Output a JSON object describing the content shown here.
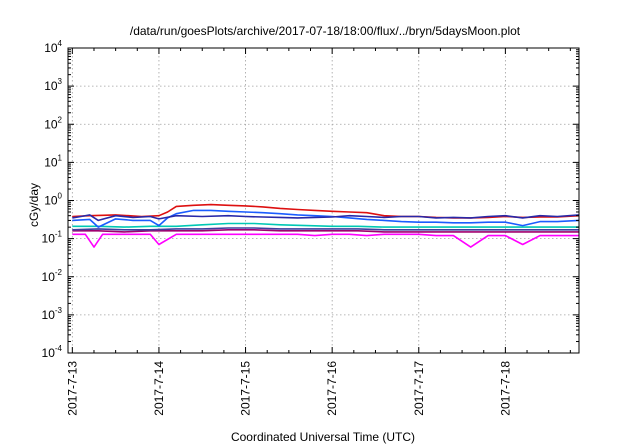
{
  "chart_data": {
    "type": "line",
    "title": "/data/run/goesPlots/archive/2017-07-18/18:00/flux/../bryn/5daysMoon.plot",
    "xlabel": "Coordinated Universal Time (UTC)",
    "ylabel": "cGy/day",
    "yscale": "log",
    "ylim": [
      0.0001,
      10000
    ],
    "xlim": [
      -0.05,
      5.85
    ],
    "grid": true,
    "y_ticks": [
      {
        "base": "10",
        "exp": "-4",
        "value": 0.0001
      },
      {
        "base": "10",
        "exp": "-3",
        "value": 0.001
      },
      {
        "base": "10",
        "exp": "-2",
        "value": 0.01
      },
      {
        "base": "10",
        "exp": "-1",
        "value": 0.1
      },
      {
        "base": "10",
        "exp": "0",
        "value": 1
      },
      {
        "base": "10",
        "exp": "1",
        "value": 10
      },
      {
        "base": "10",
        "exp": "2",
        "value": 100
      },
      {
        "base": "10",
        "exp": "3",
        "value": 1000
      },
      {
        "base": "10",
        "exp": "4",
        "value": 10000
      }
    ],
    "x_ticks": [
      {
        "label": "2017-7-13",
        "value": 0
      },
      {
        "label": "2017-7-14",
        "value": 1
      },
      {
        "label": "2017-7-15",
        "value": 2
      },
      {
        "label": "2017-7-16",
        "value": 3
      },
      {
        "label": "2017-7-17",
        "value": 4
      },
      {
        "label": "2017-7-18",
        "value": 5
      }
    ],
    "series": [
      {
        "color": "#ff00ff",
        "x": [
          0,
          0.15,
          0.25,
          0.35,
          0.5,
          0.7,
          0.9,
          1.0,
          1.2,
          1.4,
          1.6,
          1.8,
          2.0,
          2.2,
          2.4,
          2.6,
          2.8,
          3.0,
          3.2,
          3.4,
          3.6,
          3.8,
          4.0,
          4.2,
          4.4,
          4.6,
          4.8,
          5.0,
          5.2,
          5.4,
          5.6,
          5.85
        ],
        "y": [
          0.13,
          0.13,
          0.06,
          0.13,
          0.13,
          0.13,
          0.13,
          0.07,
          0.13,
          0.13,
          0.13,
          0.13,
          0.13,
          0.13,
          0.13,
          0.13,
          0.12,
          0.13,
          0.13,
          0.12,
          0.13,
          0.13,
          0.13,
          0.12,
          0.12,
          0.06,
          0.12,
          0.12,
          0.07,
          0.12,
          0.12,
          0.12
        ]
      },
      {
        "color": "#a0006f",
        "x": [
          0,
          0.3,
          0.6,
          0.9,
          1.2,
          1.5,
          1.8,
          2.1,
          2.4,
          2.7,
          3.0,
          3.3,
          3.6,
          3.9,
          4.2,
          4.5,
          4.8,
          5.1,
          5.4,
          5.85
        ],
        "y": [
          0.16,
          0.16,
          0.15,
          0.16,
          0.16,
          0.16,
          0.17,
          0.17,
          0.16,
          0.16,
          0.16,
          0.16,
          0.15,
          0.15,
          0.15,
          0.15,
          0.15,
          0.15,
          0.15,
          0.15
        ]
      },
      {
        "color": "#3f3f9f",
        "x": [
          0,
          0.3,
          0.6,
          0.9,
          1.2,
          1.5,
          1.8,
          2.1,
          2.4,
          2.7,
          3.0,
          3.3,
          3.6,
          3.9,
          4.2,
          4.5,
          4.8,
          5.1,
          5.4,
          5.85
        ],
        "y": [
          0.17,
          0.18,
          0.17,
          0.17,
          0.18,
          0.18,
          0.19,
          0.19,
          0.18,
          0.18,
          0.18,
          0.18,
          0.17,
          0.17,
          0.17,
          0.17,
          0.17,
          0.17,
          0.17,
          0.17
        ]
      },
      {
        "color": "#00c8b4",
        "x": [
          0,
          0.3,
          0.6,
          0.9,
          1.2,
          1.5,
          1.8,
          2.1,
          2.4,
          2.7,
          3.0,
          3.3,
          3.6,
          3.9,
          4.2,
          4.5,
          4.8,
          5.1,
          5.4,
          5.85
        ],
        "y": [
          0.21,
          0.21,
          0.2,
          0.21,
          0.21,
          0.23,
          0.25,
          0.25,
          0.23,
          0.22,
          0.21,
          0.21,
          0.2,
          0.2,
          0.2,
          0.2,
          0.2,
          0.2,
          0.2,
          0.2
        ]
      },
      {
        "color": "#1a5cff",
        "x": [
          0,
          0.2,
          0.3,
          0.5,
          0.7,
          0.9,
          1.0,
          1.1,
          1.2,
          1.4,
          1.6,
          1.8,
          2.0,
          2.2,
          2.4,
          2.6,
          2.8,
          3.0,
          3.2,
          3.4,
          3.6,
          3.8,
          4.0,
          4.2,
          4.4,
          4.6,
          4.8,
          5.0,
          5.2,
          5.4,
          5.6,
          5.85
        ],
        "y": [
          0.3,
          0.32,
          0.2,
          0.33,
          0.3,
          0.3,
          0.22,
          0.35,
          0.45,
          0.55,
          0.55,
          0.52,
          0.5,
          0.48,
          0.45,
          0.42,
          0.4,
          0.38,
          0.35,
          0.32,
          0.3,
          0.28,
          0.27,
          0.27,
          0.26,
          0.26,
          0.27,
          0.27,
          0.22,
          0.28,
          0.28,
          0.3
        ]
      },
      {
        "color": "#dd1010",
        "x": [
          0,
          0.2,
          0.5,
          0.8,
          1.0,
          1.1,
          1.2,
          1.4,
          1.6,
          1.8,
          2.0,
          2.2,
          2.4,
          2.6,
          2.8,
          3.0,
          3.2,
          3.4,
          3.6,
          3.8,
          4.0,
          4.2,
          4.4,
          4.6,
          4.8,
          5.0,
          5.2,
          5.4,
          5.6,
          5.85
        ],
        "y": [
          0.38,
          0.4,
          0.42,
          0.38,
          0.4,
          0.5,
          0.7,
          0.75,
          0.78,
          0.75,
          0.72,
          0.68,
          0.62,
          0.58,
          0.55,
          0.52,
          0.5,
          0.48,
          0.4,
          0.38,
          0.38,
          0.36,
          0.35,
          0.35,
          0.36,
          0.38,
          0.36,
          0.37,
          0.37,
          0.4
        ]
      },
      {
        "color": "#2828a8",
        "x": [
          0,
          0.1,
          0.2,
          0.3,
          0.5,
          0.7,
          0.9,
          1.0,
          1.2,
          1.5,
          1.8,
          2.0,
          2.2,
          2.4,
          2.6,
          2.8,
          3.0,
          3.2,
          3.4,
          3.6,
          3.8,
          4.0,
          4.2,
          4.4,
          4.6,
          4.8,
          5.0,
          5.2,
          5.4,
          5.6,
          5.85
        ],
        "y": [
          0.35,
          0.38,
          0.42,
          0.3,
          0.4,
          0.36,
          0.38,
          0.33,
          0.4,
          0.38,
          0.4,
          0.38,
          0.37,
          0.36,
          0.35,
          0.36,
          0.37,
          0.4,
          0.38,
          0.36,
          0.38,
          0.38,
          0.35,
          0.36,
          0.35,
          0.38,
          0.4,
          0.35,
          0.4,
          0.38,
          0.42
        ]
      }
    ]
  }
}
